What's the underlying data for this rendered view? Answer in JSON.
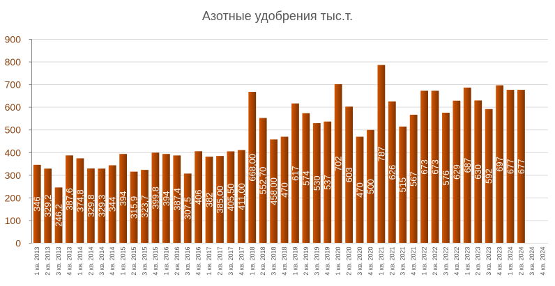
{
  "chart_data": {
    "type": "bar",
    "title": "Азотные удобрения тыс.т.",
    "xlabel": "",
    "ylabel": "",
    "ylim": [
      0,
      900
    ],
    "yticks": [
      0,
      100,
      200,
      300,
      400,
      500,
      600,
      700,
      800,
      900
    ],
    "grid": true,
    "legend": "none",
    "colors": {
      "bar_light": "#d45500",
      "bar_dark": "#7f3300",
      "axis_labels": "#8b4513",
      "grid": "#d9d9d9"
    },
    "categories": [
      "1 кв. 2013",
      "2 кв. 2013",
      "3 кв. 2013",
      "4 кв. 2013",
      "1 кв. 2014",
      "2 кв. 2014",
      "3 кв. 2014",
      "4 кв. 2014",
      "1 кв. 2015",
      "2 кв. 2015",
      "3 кв. 2015",
      "4 кв. 2015",
      "1 кв. 2016",
      "2 кв. 2016",
      "3 кв. 2016",
      "4 кв. 2016",
      "1 кв. 2017",
      "2 кв. 2017",
      "3 кв. 2017",
      "4 кв. 2017",
      "1 кв. 2018",
      "2 кв. 2018",
      "3 кв. 2018",
      "4 кв. 2018",
      "1 кв. 2019",
      "2 кв. 2019",
      "3 кв. 2019",
      "4 кв. 2019",
      "1 кв. 2020",
      "2 кв. 2020",
      "3 кв. 2020",
      "4 кв. 2020",
      "1 кв. 2021",
      "2 кв. 2021",
      "3 кв. 2021",
      "4 кв. 2021",
      "1 кв. 2022",
      "2 кв. 2022",
      "3 кв. 2022",
      "4 кв. 2022",
      "1 кв. 2023",
      "2 кв. 2023",
      "3 кв. 2023",
      "4 кв. 2023",
      "1 кв. 2024",
      "2 кв. 2024",
      "3 кв. 2024",
      "4 кв. 2024"
    ],
    "values": [
      346,
      329.2,
      246.2,
      387.6,
      374.8,
      329.8,
      329.3,
      344,
      394,
      315.9,
      323.7,
      399.8,
      394,
      387.4,
      307.5,
      406,
      382,
      385,
      405.5,
      411,
      668,
      552.7,
      458,
      470,
      617,
      574,
      530,
      537,
      702,
      603,
      470,
      500,
      787,
      626,
      515,
      567,
      673,
      673,
      576,
      629,
      687,
      630,
      592,
      697,
      677,
      677,
      null,
      null
    ],
    "data_labels": [
      "346",
      "329,2",
      "246,2",
      "387,6",
      "374,8",
      "329,8",
      "329,3",
      "344",
      "394",
      "315,9",
      "323,7",
      "399,8",
      "394",
      "387,4",
      "307,5",
      "406",
      "382",
      "385,00",
      "405,50",
      "411,00",
      "668,00",
      "552,70",
      "458,00",
      "470",
      "617",
      "574",
      "530",
      "537",
      "702",
      "603",
      "470",
      "500",
      "787",
      "626",
      "515",
      "567",
      "673",
      "673",
      "576",
      "629",
      "687",
      "630",
      "592",
      "697",
      "677",
      "677",
      "",
      ""
    ]
  }
}
